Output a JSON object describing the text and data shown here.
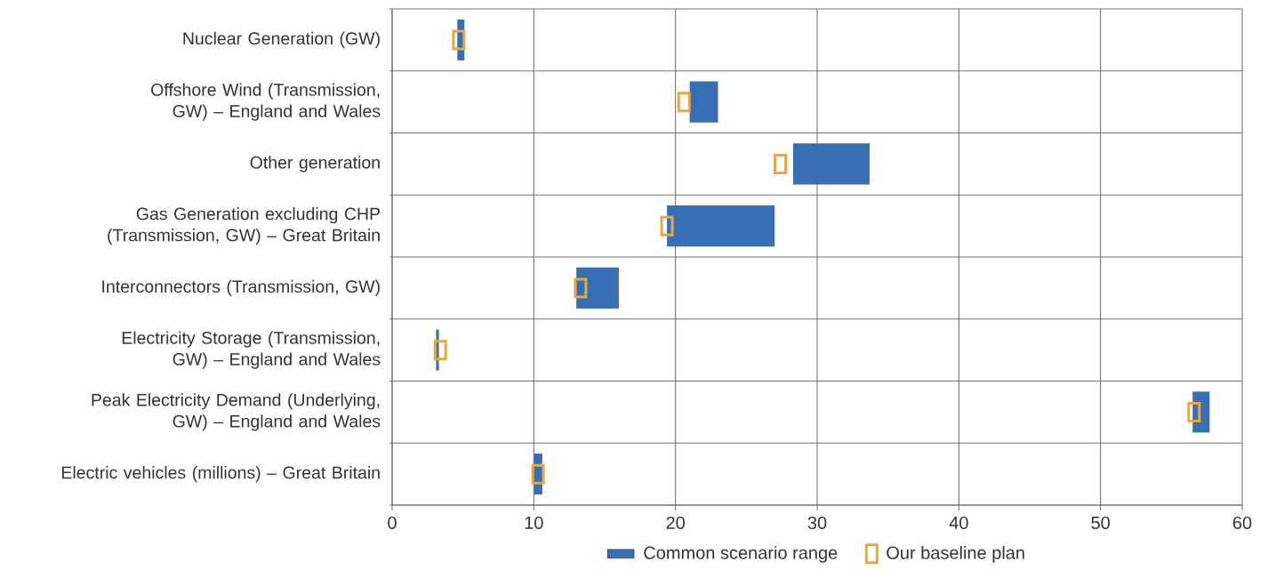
{
  "chart_data": {
    "type": "bar",
    "orientation": "horizontal",
    "categories": [
      "Nuclear Generation (GW)",
      "Offshore Wind (Transmission, GW) – England and Wales",
      "Other generation",
      "Gas Generation excluding CHP (Transmission, GW) – Great Britain",
      "Interconnectors (Transmission, GW)",
      "Electricity Storage (Transmission, GW) – England and Wales",
      "Peak Electricity Demand (Underlying, GW) – England and Wales",
      "Electric vehicles (millions) – Great Britain"
    ],
    "series": [
      {
        "name": "Common scenario range",
        "color": "#376eb4",
        "base": [
          4.6,
          21.0,
          28.3,
          19.4,
          13.0,
          3.1,
          56.5,
          10.0
        ],
        "values": [
          0.5,
          2.0,
          5.4,
          7.6,
          3.0,
          0.2,
          1.2,
          0.6
        ]
      },
      {
        "name": "Our baseline plan",
        "type": "scatter",
        "color": "#e8a83e",
        "values": [
          4.7,
          20.6,
          27.4,
          19.4,
          13.3,
          3.4,
          56.6,
          10.3
        ]
      }
    ],
    "xlim": [
      0,
      60
    ],
    "xticks": [
      0,
      10,
      20,
      30,
      40,
      50,
      60
    ],
    "grid": true,
    "legend": "bottom",
    "marker": "square"
  }
}
